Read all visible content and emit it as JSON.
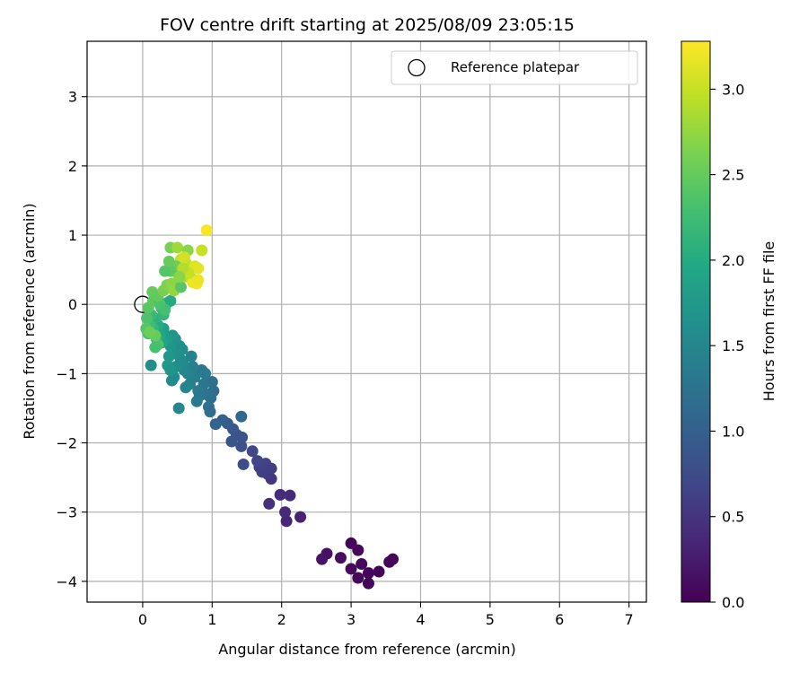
{
  "chart_data": {
    "type": "scatter",
    "title": "FOV centre drift starting at 2025/08/09 23:05:15",
    "xlabel": "Angular distance from reference (arcmin)",
    "ylabel": "Rotation from reference (arcmin)",
    "xlim": [
      -0.8,
      7.25
    ],
    "ylim": [
      -4.3,
      3.8
    ],
    "xticks": [
      0,
      1,
      2,
      3,
      4,
      5,
      6,
      7
    ],
    "yticks": [
      3,
      2,
      1,
      0,
      -1,
      -2,
      -3,
      -4
    ],
    "grid": true,
    "legend": {
      "placement": "top-right",
      "entries": [
        "Reference platepar"
      ]
    },
    "reference_point": {
      "x": 0,
      "y": 0,
      "label": "Reference platepar"
    },
    "colorbar": {
      "label": "Hours from first FF file",
      "range": [
        0.0,
        3.28
      ],
      "ticks": [
        "0.0",
        "0.5",
        "1.0",
        "1.5",
        "2.0",
        "2.5",
        "3.0"
      ],
      "colormap": "viridis"
    },
    "points": [
      {
        "x": 3.0,
        "y": -3.45,
        "c": 0.05
      },
      {
        "x": 3.1,
        "y": -3.55,
        "c": 0.07
      },
      {
        "x": 3.6,
        "y": -3.68,
        "c": 0.03
      },
      {
        "x": 3.55,
        "y": -3.72,
        "c": 0.06
      },
      {
        "x": 3.4,
        "y": -3.86,
        "c": 0.04
      },
      {
        "x": 3.25,
        "y": -3.88,
        "c": 0.05
      },
      {
        "x": 3.15,
        "y": -3.75,
        "c": 0.08
      },
      {
        "x": 3.0,
        "y": -3.82,
        "c": 0.09
      },
      {
        "x": 3.1,
        "y": -3.95,
        "c": 0.07
      },
      {
        "x": 3.25,
        "y": -4.03,
        "c": 0.05
      },
      {
        "x": 2.85,
        "y": -3.66,
        "c": 0.12
      },
      {
        "x": 2.65,
        "y": -3.6,
        "c": 0.15
      },
      {
        "x": 2.58,
        "y": -3.68,
        "c": 0.18
      },
      {
        "x": 2.27,
        "y": -3.07,
        "c": 0.32
      },
      {
        "x": 2.07,
        "y": -3.13,
        "c": 0.35
      },
      {
        "x": 2.05,
        "y": -3.0,
        "c": 0.38
      },
      {
        "x": 2.12,
        "y": -2.76,
        "c": 0.4
      },
      {
        "x": 1.98,
        "y": -2.75,
        "c": 0.42
      },
      {
        "x": 1.82,
        "y": -2.88,
        "c": 0.45
      },
      {
        "x": 1.85,
        "y": -2.52,
        "c": 0.5
      },
      {
        "x": 1.8,
        "y": -2.45,
        "c": 0.55
      },
      {
        "x": 1.72,
        "y": -2.42,
        "c": 0.6
      },
      {
        "x": 1.68,
        "y": -2.35,
        "c": 0.62
      },
      {
        "x": 1.77,
        "y": -2.3,
        "c": 0.65
      },
      {
        "x": 1.85,
        "y": -2.37,
        "c": 0.58
      },
      {
        "x": 1.65,
        "y": -2.26,
        "c": 0.68
      },
      {
        "x": 1.58,
        "y": -2.12,
        "c": 0.72
      },
      {
        "x": 1.45,
        "y": -2.31,
        "c": 0.75
      },
      {
        "x": 1.42,
        "y": -2.05,
        "c": 0.8
      },
      {
        "x": 1.43,
        "y": -1.92,
        "c": 0.82
      },
      {
        "x": 1.35,
        "y": -1.88,
        "c": 0.85
      },
      {
        "x": 1.28,
        "y": -1.98,
        "c": 0.88
      },
      {
        "x": 1.3,
        "y": -1.8,
        "c": 0.9
      },
      {
        "x": 1.22,
        "y": -1.72,
        "c": 0.95
      },
      {
        "x": 1.15,
        "y": -1.67,
        "c": 1.0
      },
      {
        "x": 1.05,
        "y": -1.73,
        "c": 1.05
      },
      {
        "x": 1.42,
        "y": -1.62,
        "c": 1.1
      },
      {
        "x": 1.02,
        "y": -1.25,
        "c": 1.15
      },
      {
        "x": 1.0,
        "y": -1.12,
        "c": 1.2
      },
      {
        "x": 0.98,
        "y": -1.35,
        "c": 1.2
      },
      {
        "x": 0.95,
        "y": -1.48,
        "c": 1.22
      },
      {
        "x": 0.97,
        "y": -1.55,
        "c": 1.18
      },
      {
        "x": 0.92,
        "y": -1.3,
        "c": 1.25
      },
      {
        "x": 0.88,
        "y": -1.15,
        "c": 1.28
      },
      {
        "x": 0.85,
        "y": -0.95,
        "c": 1.3
      },
      {
        "x": 0.9,
        "y": -1.0,
        "c": 1.32
      },
      {
        "x": 0.8,
        "y": -1.25,
        "c": 1.35
      },
      {
        "x": 0.82,
        "y": -1.32,
        "c": 1.3
      },
      {
        "x": 0.78,
        "y": -1.4,
        "c": 1.35
      },
      {
        "x": 0.75,
        "y": -1.05,
        "c": 1.38
      },
      {
        "x": 0.72,
        "y": -0.9,
        "c": 1.4
      },
      {
        "x": 0.7,
        "y": -0.75,
        "c": 1.45
      },
      {
        "x": 0.68,
        "y": -1.15,
        "c": 1.42
      },
      {
        "x": 0.65,
        "y": -1.0,
        "c": 1.45
      },
      {
        "x": 0.62,
        "y": -1.2,
        "c": 1.48
      },
      {
        "x": 0.6,
        "y": -0.95,
        "c": 1.5
      },
      {
        "x": 0.58,
        "y": -0.85,
        "c": 1.52
      },
      {
        "x": 0.55,
        "y": -0.8,
        "c": 1.55
      },
      {
        "x": 0.57,
        "y": -0.65,
        "c": 1.58
      },
      {
        "x": 0.53,
        "y": -0.6,
        "c": 1.6
      },
      {
        "x": 0.5,
        "y": -0.72,
        "c": 1.62
      },
      {
        "x": 0.48,
        "y": -0.9,
        "c": 1.6
      },
      {
        "x": 0.45,
        "y": -1.05,
        "c": 1.58
      },
      {
        "x": 0.42,
        "y": -1.1,
        "c": 1.55
      },
      {
        "x": 0.52,
        "y": -1.5,
        "c": 1.5
      },
      {
        "x": 0.47,
        "y": -0.5,
        "c": 1.65
      },
      {
        "x": 0.43,
        "y": -0.45,
        "c": 1.68
      },
      {
        "x": 0.4,
        "y": -0.6,
        "c": 1.7
      },
      {
        "x": 0.38,
        "y": -0.75,
        "c": 1.72
      },
      {
        "x": 0.36,
        "y": -0.88,
        "c": 1.75
      },
      {
        "x": 0.4,
        "y": -0.95,
        "c": 1.7
      },
      {
        "x": 0.12,
        "y": -0.88,
        "c": 1.6
      },
      {
        "x": 0.35,
        "y": -0.5,
        "c": 1.8
      },
      {
        "x": 0.3,
        "y": -0.35,
        "c": 1.85
      },
      {
        "x": 0.28,
        "y": -0.55,
        "c": 1.9
      },
      {
        "x": 0.25,
        "y": -0.45,
        "c": 1.95
      },
      {
        "x": 0.22,
        "y": -0.3,
        "c": 2.0
      },
      {
        "x": 0.2,
        "y": -0.5,
        "c": 2.05
      },
      {
        "x": 0.18,
        "y": -0.2,
        "c": 2.1
      },
      {
        "x": 0.15,
        "y": -0.35,
        "c": 2.15
      },
      {
        "x": 0.12,
        "y": -0.15,
        "c": 2.2
      },
      {
        "x": 0.1,
        "y": -0.3,
        "c": 2.25
      },
      {
        "x": 0.08,
        "y": -0.42,
        "c": 2.3
      },
      {
        "x": 0.06,
        "y": -0.2,
        "c": 2.35
      },
      {
        "x": 0.05,
        "y": -0.35,
        "c": 2.4
      },
      {
        "x": 0.08,
        "y": -0.05,
        "c": 2.42
      },
      {
        "x": 0.22,
        "y": -0.58,
        "c": 2.35
      },
      {
        "x": 0.18,
        "y": -0.62,
        "c": 2.3
      },
      {
        "x": 0.27,
        "y": -0.05,
        "c": 2.2
      },
      {
        "x": 0.3,
        "y": -0.15,
        "c": 2.15
      },
      {
        "x": 0.35,
        "y": 0.02,
        "c": 2.1
      },
      {
        "x": 0.4,
        "y": 0.05,
        "c": 2.0
      },
      {
        "x": 0.15,
        "y": 0.05,
        "c": 2.45
      },
      {
        "x": 0.2,
        "y": 0.1,
        "c": 2.4
      },
      {
        "x": 0.25,
        "y": 0.0,
        "c": 2.35
      },
      {
        "x": 0.32,
        "y": -0.08,
        "c": 2.3
      },
      {
        "x": 0.14,
        "y": 0.18,
        "c": 2.5
      },
      {
        "x": 0.22,
        "y": 0.12,
        "c": 2.48
      },
      {
        "x": 0.18,
        "y": -0.45,
        "c": 2.5
      },
      {
        "x": 0.1,
        "y": -0.4,
        "c": 2.55
      },
      {
        "x": 0.3,
        "y": 0.2,
        "c": 2.6
      },
      {
        "x": 0.35,
        "y": 0.28,
        "c": 2.65
      },
      {
        "x": 0.42,
        "y": 0.3,
        "c": 2.7
      },
      {
        "x": 0.45,
        "y": 0.2,
        "c": 2.75
      },
      {
        "x": 0.55,
        "y": 0.25,
        "c": 2.4
      },
      {
        "x": 0.5,
        "y": 0.45,
        "c": 2.8
      },
      {
        "x": 0.6,
        "y": 0.4,
        "c": 2.85
      },
      {
        "x": 0.7,
        "y": 0.38,
        "c": 2.9
      },
      {
        "x": 0.62,
        "y": 0.6,
        "c": 2.95
      },
      {
        "x": 0.55,
        "y": 0.65,
        "c": 3.0
      },
      {
        "x": 0.48,
        "y": 0.55,
        "c": 2.55
      },
      {
        "x": 0.4,
        "y": 0.48,
        "c": 2.45
      },
      {
        "x": 0.32,
        "y": 0.48,
        "c": 2.4
      },
      {
        "x": 0.38,
        "y": 0.62,
        "c": 2.5
      },
      {
        "x": 0.4,
        "y": 0.82,
        "c": 2.6
      },
      {
        "x": 0.5,
        "y": 0.82,
        "c": 2.8
      },
      {
        "x": 0.65,
        "y": 0.78,
        "c": 2.7
      },
      {
        "x": 0.85,
        "y": 0.78,
        "c": 3.0
      },
      {
        "x": 0.92,
        "y": 1.07,
        "c": 3.25
      },
      {
        "x": 0.75,
        "y": 0.55,
        "c": 3.1
      },
      {
        "x": 0.8,
        "y": 0.52,
        "c": 3.15
      },
      {
        "x": 0.72,
        "y": 0.32,
        "c": 3.2
      },
      {
        "x": 0.78,
        "y": 0.3,
        "c": 3.22
      },
      {
        "x": 0.8,
        "y": 0.35,
        "c": 3.18
      },
      {
        "x": 0.6,
        "y": 0.68,
        "c": 3.05
      },
      {
        "x": 0.66,
        "y": 0.45,
        "c": 3.0
      },
      {
        "x": 0.58,
        "y": 0.52,
        "c": 2.9
      },
      {
        "x": 0.53,
        "y": 0.4,
        "c": 2.7
      }
    ]
  }
}
